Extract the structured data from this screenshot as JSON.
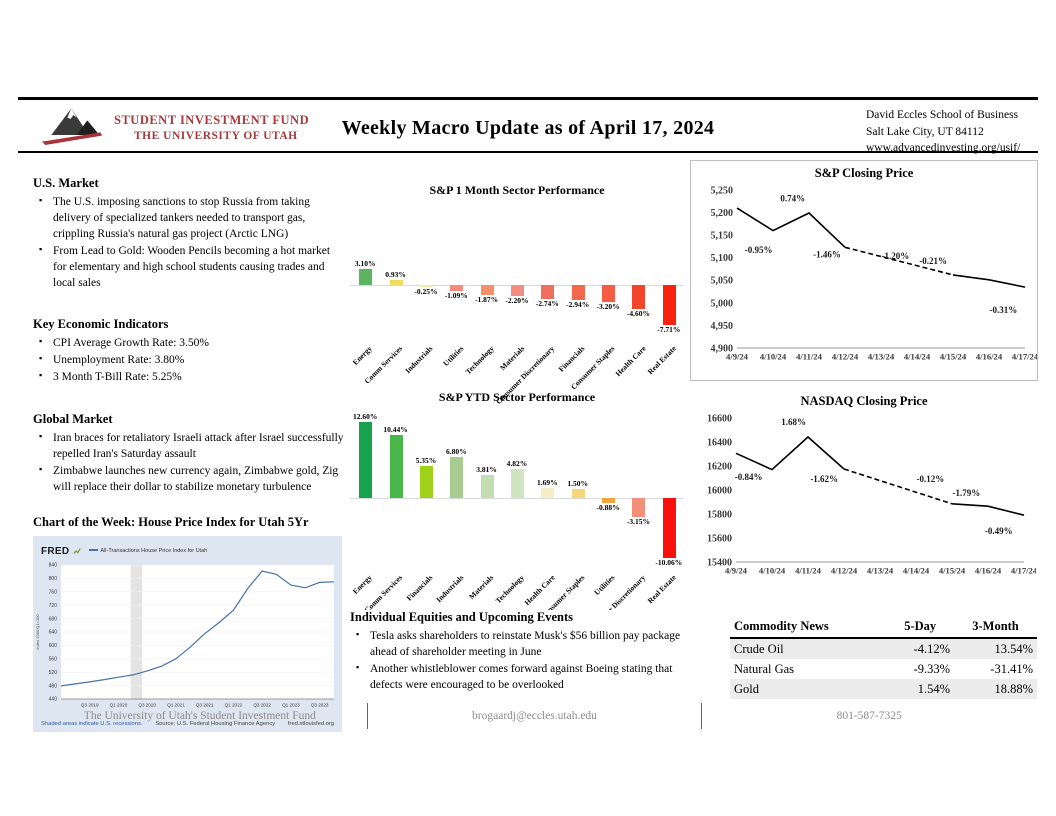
{
  "header": {
    "org_line1": "STUDENT INVESTMENT FUND",
    "org_line2": "THE UNIVERSITY OF UTAH",
    "title": "Weekly Macro Update as of April 17, 2024",
    "contact_line1": "David Eccles School of Business",
    "contact_line2": "Salt Lake City, UT 84112",
    "contact_link": "www.advancedinvesting.org/usif/"
  },
  "left": {
    "us_market": {
      "heading": "U.S. Market",
      "bullets": [
        "The U.S. imposing sanctions to stop Russia from taking delivery of specialized tankers needed to transport gas, crippling Russia's natural gas project (Arctic LNG)",
        "From Lead to Gold: Wooden Pencils becoming a hot market for elementary and high school students causing trades and local sales"
      ]
    },
    "key_econ": {
      "heading": "Key Economic Indicators",
      "bullets": [
        "CPI Average Growth Rate: 3.50%",
        "Unemployment Rate: 3.80%",
        "3 Month T-Bill Rate: 5.25%"
      ]
    },
    "global_market": {
      "heading": "Global Market",
      "bullets": [
        "Iran braces for retaliatory Israeli attack after Israel successfully repelled Iran's Saturday assault",
        "Zimbabwe launches new currency again, Zimbabwe gold, Zig will replace their dollar to stabilize monetary turbulence"
      ]
    },
    "chart_of_week_heading": "Chart of the Week: House Price Index for Utah 5Yr",
    "fred": {
      "logo": "FRED",
      "legend": "All-Transactions House Price Index for Utah",
      "ylabel": "Index 1980:Q1=100",
      "footer_left": "Shaded areas indicate U.S. recessions.",
      "footer_mid": "Source: U.S. Federal Housing Finance Agency",
      "footer_right": "fred.stlouisfed.org"
    }
  },
  "middle": {
    "equities": {
      "heading": "Individual Equities and Upcoming Events",
      "bullets": [
        "Tesla asks shareholders to reinstate Musk's $56 billion pay package ahead of shareholder meeting in June",
        "Another whistleblower comes forward against Boeing stating that defects were encouraged to be overlooked"
      ]
    }
  },
  "right": {
    "commodity_table": {
      "headers": [
        "Commodity News",
        "5-Day",
        "3-Month"
      ],
      "rows": [
        [
          "Crude Oil",
          "-4.12%",
          "13.54%"
        ],
        [
          "Natural Gas",
          "-9.33%",
          "-31.41%"
        ],
        [
          "Gold",
          "1.54%",
          "18.88%"
        ]
      ]
    }
  },
  "footer": {
    "left": "The University of Utah's Student Investment Fund",
    "center": "brogaardj@eccles.utah.edu",
    "right": "801-587-7325"
  },
  "chart_data": [
    {
      "id": "sp_1m_sector",
      "type": "bar",
      "title": "S&P 1 Month Sector Performance",
      "categories": [
        "Energy",
        "Comm Services",
        "Industrials",
        "Utilities",
        "Technology",
        "Materials",
        "Consumer Discretionary",
        "Financials",
        "Consumer Staples",
        "Health Care",
        "Real Estate"
      ],
      "values": [
        3.1,
        0.93,
        -0.25,
        -1.09,
        -1.87,
        -2.2,
        -2.74,
        -2.94,
        -3.2,
        -4.6,
        -7.71
      ],
      "value_labels": [
        "3.10%",
        "0.93%",
        "-0.25%",
        "-1.09%",
        "-1.87%",
        "-2.20%",
        "-2.74%",
        "-2.94%",
        "-3.20%",
        "-4.60%",
        "-7.71%"
      ],
      "colors": [
        "#5bb55e",
        "#f2dc5d",
        "#f6e9a4",
        "#f58a7d",
        "#f5906a",
        "#f48d7f",
        "#ef6e5e",
        "#f36950",
        "#f45d44",
        "#f1462c",
        "#fb2110"
      ]
    },
    {
      "id": "sp_ytd_sector",
      "type": "bar",
      "title": "S&P YTD Sector Performance",
      "categories": [
        "Energy",
        "Comm Services",
        "Financials",
        "Industrials",
        "Materials",
        "Technology",
        "Health Care",
        "Consumer Staples",
        "Utilities",
        "Consumer Discretionary",
        "Real Estate"
      ],
      "values": [
        12.6,
        10.44,
        5.35,
        6.8,
        3.81,
        4.82,
        1.69,
        1.5,
        -0.88,
        -3.15,
        -10.06
      ],
      "value_labels": [
        "12.60%",
        "10.44%",
        "5.35%",
        "6.80%",
        "3.81%",
        "4.82%",
        "1.69%",
        "1.50%",
        "-0.88%",
        "-3.15%",
        "-10.06%"
      ],
      "colors": [
        "#17a34b",
        "#49b749",
        "#9fd11b",
        "#a7cb90",
        "#c4ddb3",
        "#d0e4c2",
        "#f6edc6",
        "#f6d678",
        "#f1a53d",
        "#f18f78",
        "#fb100c"
      ]
    },
    {
      "id": "sp_closing",
      "type": "line",
      "title": "S&P Closing Price",
      "x_labels": [
        "4/9/24",
        "4/10/24",
        "4/11/24",
        "4/12/24",
        "4/13/24",
        "4/14/24",
        "4/15/24",
        "4/16/24",
        "4/17/24"
      ],
      "xmax": 8,
      "points": [
        [
          0,
          5210
        ],
        [
          1,
          5160
        ],
        [
          2,
          5199
        ],
        [
          3,
          5123
        ],
        [
          6,
          5062
        ],
        [
          7,
          5051
        ],
        [
          8,
          5035
        ]
      ],
      "dashed_between": [
        3,
        4
      ],
      "ytick_values": [
        4900,
        4950,
        5000,
        5050,
        5100,
        5150,
        5200,
        5250
      ],
      "ytick_labels": [
        "4,900",
        "4,950",
        "5,000",
        "5,050",
        "5,100",
        "5,150",
        "5,200",
        "5,250"
      ],
      "ylim": [
        4900,
        5250
      ],
      "annotations": [
        {
          "x": 0.6,
          "y": 5110,
          "label": "-0.95%"
        },
        {
          "x": 1.55,
          "y": 5224,
          "label": "0.74%"
        },
        {
          "x": 2.5,
          "y": 5100,
          "label": "-1.46%"
        },
        {
          "x": 4.4,
          "y": 5097,
          "label": "-1.20%"
        },
        {
          "x": 5.45,
          "y": 5086,
          "label": "-0.21%"
        },
        {
          "x": 7.4,
          "y": 4978,
          "label": "-0.31%"
        }
      ],
      "line_color": "#000000"
    },
    {
      "id": "nasdaq_closing",
      "type": "line",
      "title": "NASDAQ Closing Price",
      "x_labels": [
        "4/9/24",
        "4/10/24",
        "4/11/24",
        "4/12/24",
        "4/13/24",
        "4/14/24",
        "4/15/24",
        "4/16/24",
        "4/17/24"
      ],
      "xmax": 8,
      "points": [
        [
          0,
          16306
        ],
        [
          1,
          16170
        ],
        [
          2,
          16442
        ],
        [
          3,
          16175
        ],
        [
          6,
          15885
        ],
        [
          7,
          15865
        ],
        [
          8,
          15790
        ]
      ],
      "dashed_between": [
        3,
        4
      ],
      "ytick_values": [
        15400,
        15600,
        15800,
        16000,
        16200,
        16400,
        16600
      ],
      "ytick_labels": [
        "15400",
        "15600",
        "15800",
        "16000",
        "16200",
        "16400",
        "16600"
      ],
      "ylim": [
        15400,
        16600
      ],
      "annotations": [
        {
          "x": 0.35,
          "y": 16085,
          "label": "-0.84%"
        },
        {
          "x": 1.6,
          "y": 16540,
          "label": "1.68%"
        },
        {
          "x": 2.45,
          "y": 16065,
          "label": "-1.62%"
        },
        {
          "x": 5.4,
          "y": 16065,
          "label": "-0.12%"
        },
        {
          "x": 6.4,
          "y": 15952,
          "label": "-1.79%"
        },
        {
          "x": 7.3,
          "y": 15635,
          "label": "-0.49%"
        }
      ],
      "line_color": "#000000"
    },
    {
      "id": "fred_utah_hpi",
      "type": "line",
      "style": "fred",
      "title": "All-Transactions House Price Index for Utah",
      "xmax": 19,
      "values": [
        479,
        485,
        491,
        498,
        505,
        512,
        524,
        538,
        560,
        595,
        635,
        668,
        705,
        770,
        822,
        812,
        780,
        772,
        788,
        790
      ],
      "x_labels": [
        "Q3 2019",
        "Q1 2020",
        "Q3 2020",
        "Q1 2021",
        "Q3 2021",
        "Q1 2022",
        "Q3 2022",
        "Q1 2023",
        "Q3 2023"
      ],
      "x_label_positions": [
        2,
        4,
        6,
        8,
        10,
        12,
        14,
        16,
        18
      ],
      "ytick_values": [
        440,
        480,
        520,
        560,
        600,
        640,
        680,
        720,
        760,
        800,
        840
      ],
      "ytick_labels": [
        "440",
        "480",
        "520",
        "560",
        "600",
        "640",
        "680",
        "720",
        "760",
        "800",
        "840"
      ],
      "ylim": [
        440,
        840
      ],
      "recession_band": {
        "from": 4.85,
        "to": 5.65
      },
      "line_color": "#4572a7"
    }
  ]
}
